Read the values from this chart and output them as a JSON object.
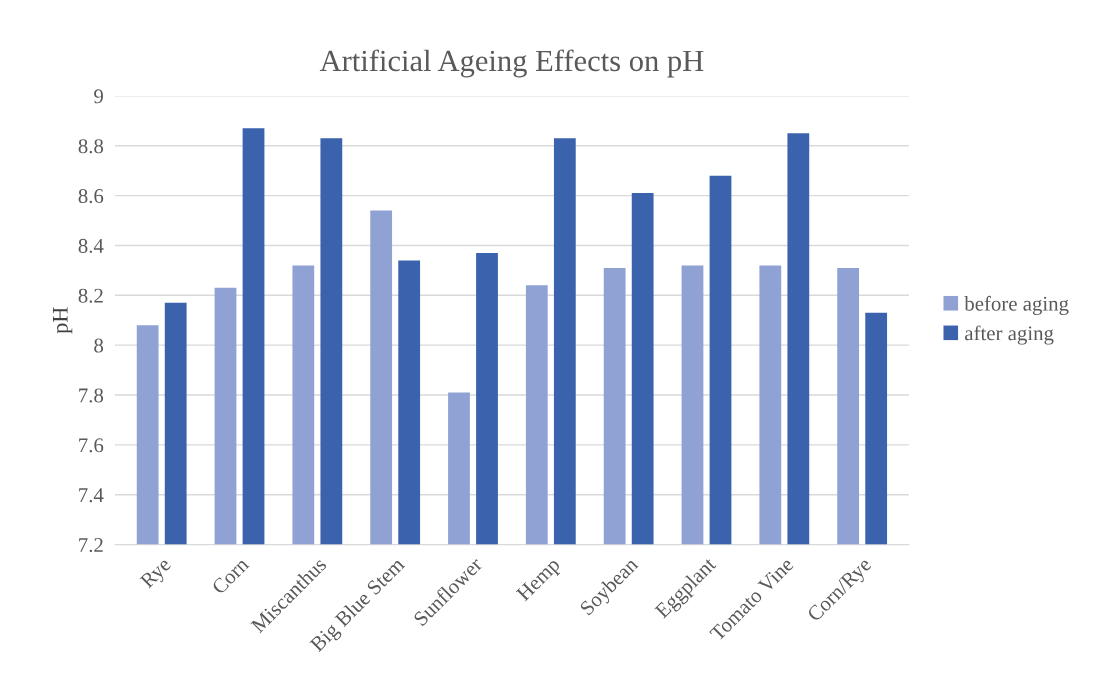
{
  "chart_data": {
    "type": "bar",
    "title": "Artificial Ageing Effects on pH",
    "ylabel": "pH",
    "categories": [
      "Rye",
      "Corn",
      "Miscanthus",
      "Big Blue Stem",
      "Sunflower",
      "Hemp",
      "Soybean",
      "Eggplant",
      "Tomato Vine",
      "Corn/Rye"
    ],
    "series": [
      {
        "name": "before aging",
        "color": "#8fa2d3",
        "values": [
          8.08,
          8.23,
          8.32,
          8.54,
          7.81,
          8.24,
          8.31,
          8.32,
          8.32,
          8.31
        ]
      },
      {
        "name": "after aging",
        "color": "#3a62ad",
        "values": [
          8.17,
          8.87,
          8.83,
          8.34,
          8.37,
          8.83,
          8.61,
          8.68,
          8.85,
          8.13
        ]
      }
    ],
    "ylim": [
      7.2,
      9
    ],
    "yticks": [
      7.2,
      7.4,
      7.6,
      7.8,
      8,
      8.2,
      8.4,
      8.6,
      8.8,
      9
    ],
    "grid": "y",
    "legend": "right"
  }
}
